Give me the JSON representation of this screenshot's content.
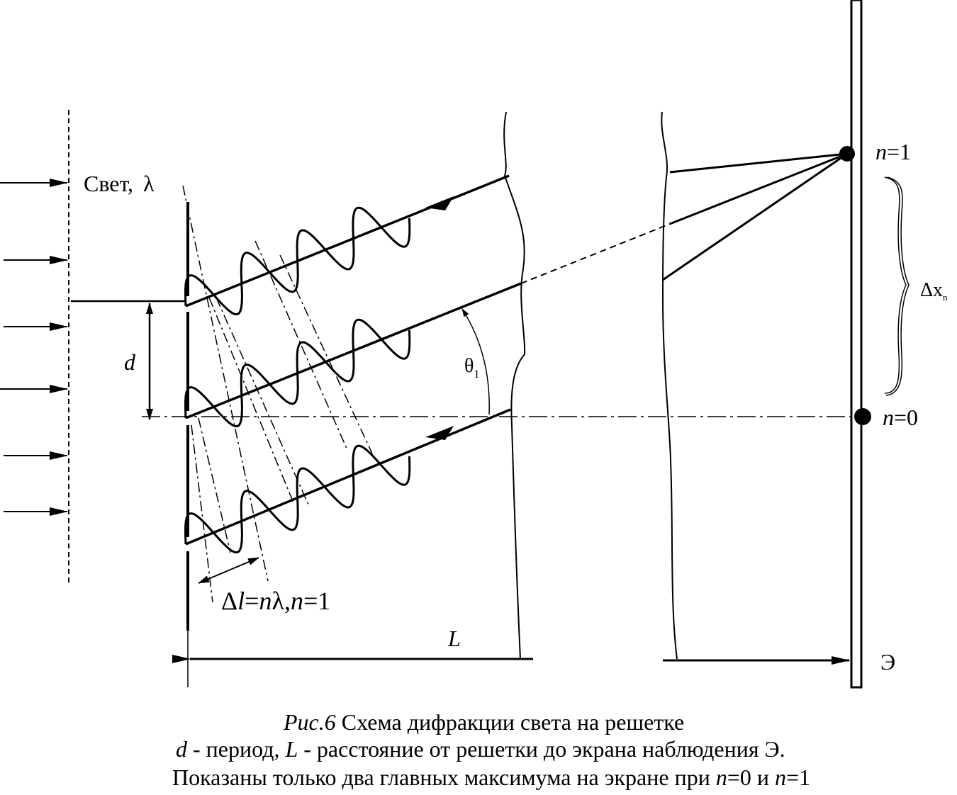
{
  "labels": {
    "light": "Свет,",
    "lambda": "λ",
    "d": "d",
    "theta": "θ",
    "theta_sub": "1",
    "path_diff": [
      "Δ",
      "l",
      "=",
      "n",
      "λ,",
      "n",
      "=1"
    ],
    "L": "L",
    "n1": [
      "n",
      "=1"
    ],
    "n0": [
      "n",
      "=0"
    ],
    "dx": "Δx",
    "dx_sub": "n",
    "screen": "Э"
  },
  "caption": {
    "line1": [
      "Рис.6",
      "Схема дифракции света на решетке"
    ],
    "line2": [
      "d",
      "- период,",
      "L",
      "- расстояние от решетки до экрана наблюдения Э."
    ],
    "line3": [
      "Показаны только два главных максимума на экране при",
      "n",
      "=0 и",
      "n",
      "=1"
    ]
  }
}
